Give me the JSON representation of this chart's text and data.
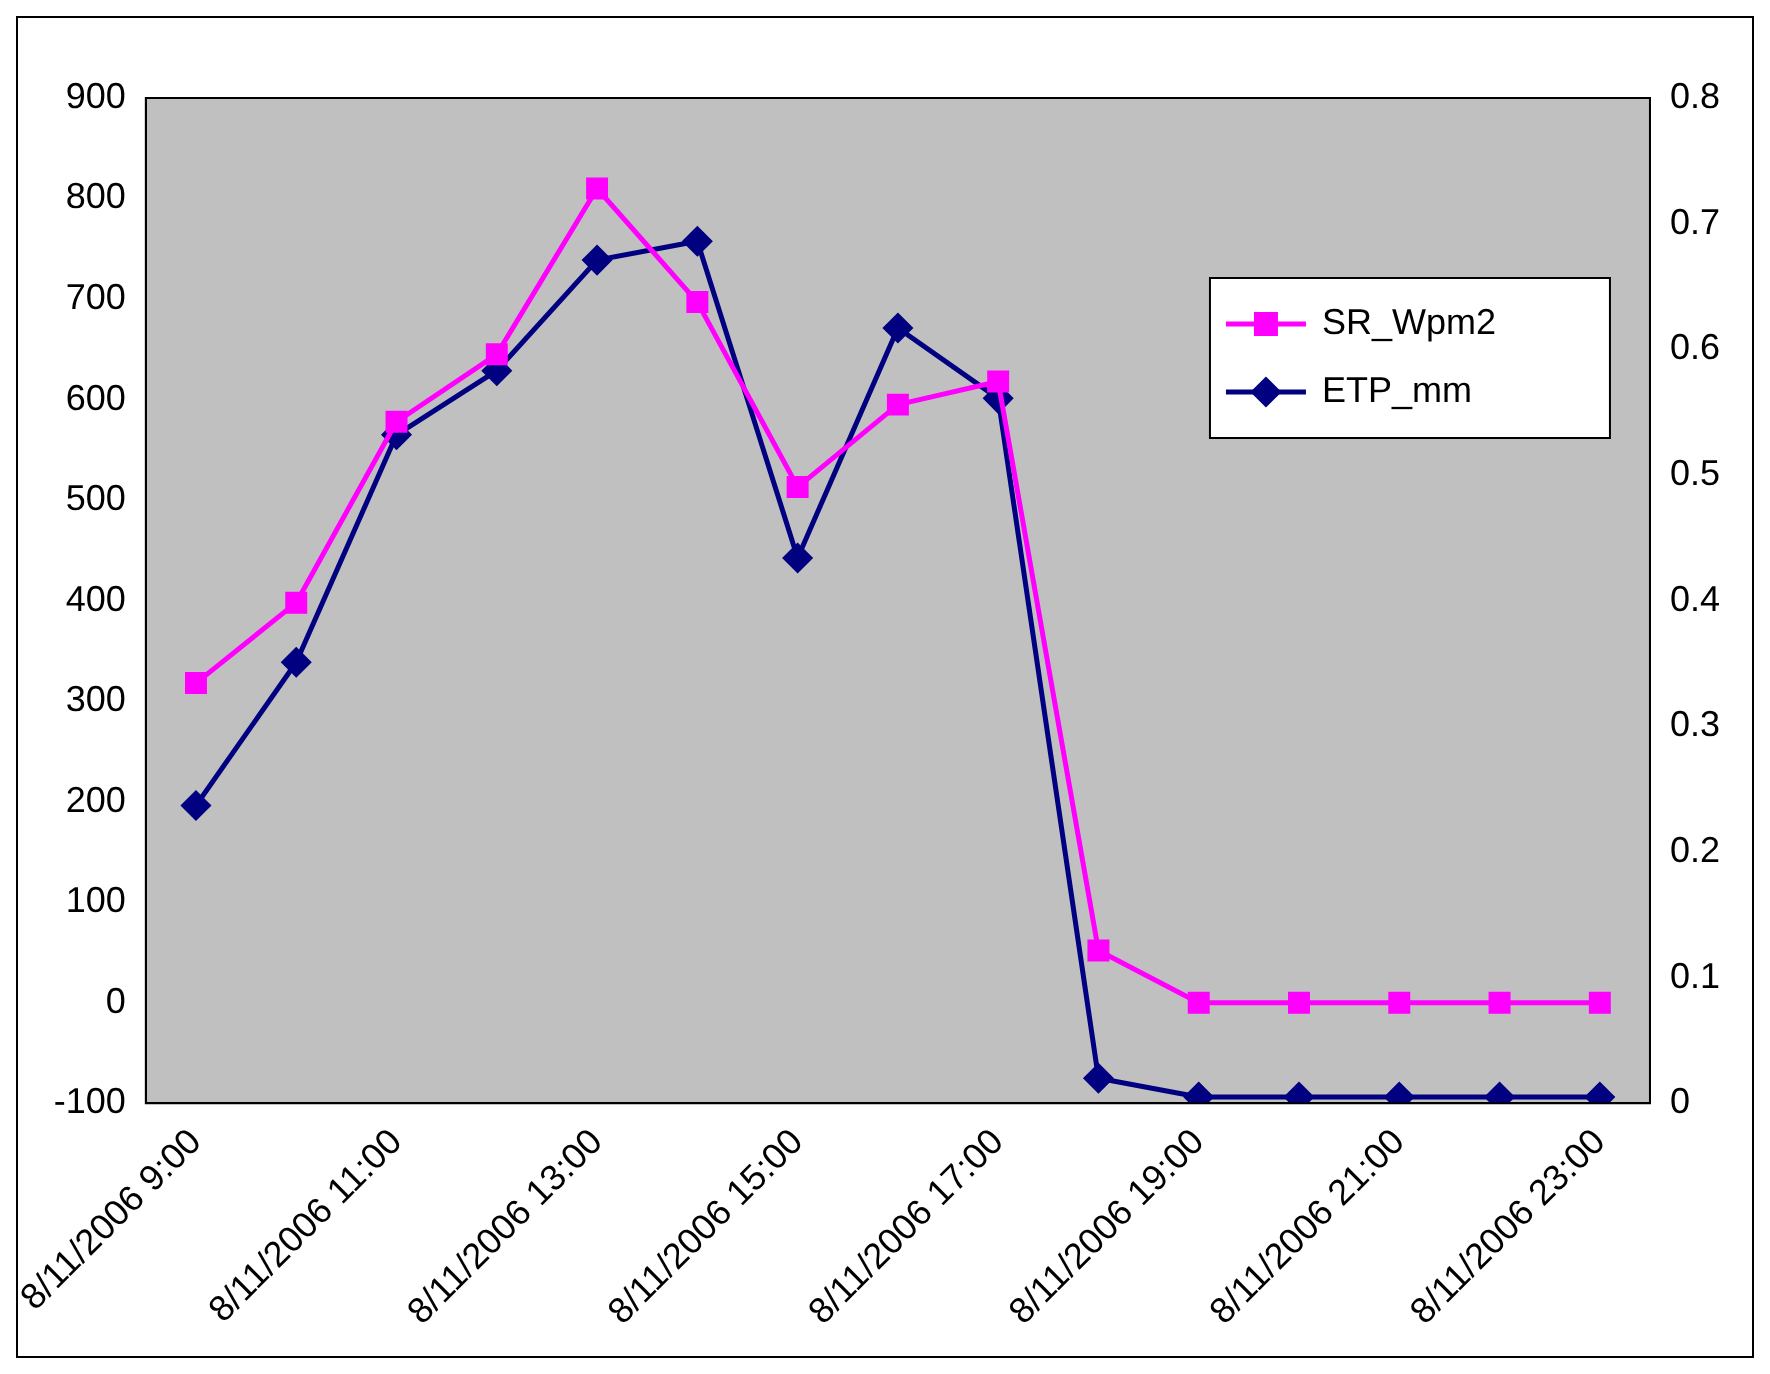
{
  "chart_data": {
    "type": "line",
    "categories": [
      "8/11/2006 9:00",
      null,
      "8/11/2006 11:00",
      null,
      "8/11/2006 13:00",
      null,
      "8/11/2006 15:00",
      null,
      "8/11/2006 17:00",
      null,
      "8/11/2006 19:00",
      null,
      "8/11/2006 21:00",
      null,
      "8/11/2006 23:00"
    ],
    "series": [
      {
        "name": "SR_Wpm2",
        "color": "#ff00ff",
        "marker": "square",
        "values": [
          318,
          398,
          578,
          645,
          810,
          697,
          513,
          595,
          618,
          52,
          0,
          0,
          0,
          0,
          0
        ]
      },
      {
        "name": "ETP_mm",
        "color": "#000080",
        "marker": "diamond",
        "axis": "y2",
        "values": [
          0.237,
          0.351,
          0.532,
          0.583,
          0.671,
          0.686,
          0.434,
          0.617,
          0.561,
          0.02,
          0.005,
          0.005,
          0.005,
          0.005,
          0.005
        ]
      }
    ],
    "ylim": [
      -100,
      900
    ],
    "yticks": [
      -100,
      0,
      100,
      200,
      300,
      400,
      500,
      600,
      700,
      800,
      900
    ],
    "y2lim": [
      0,
      0.8
    ],
    "y2ticks": [
      0,
      0.1,
      0.2,
      0.3,
      0.4,
      0.5,
      0.6,
      0.7,
      0.8
    ],
    "grid": false,
    "legend": "top right",
    "line_style": "solid"
  }
}
